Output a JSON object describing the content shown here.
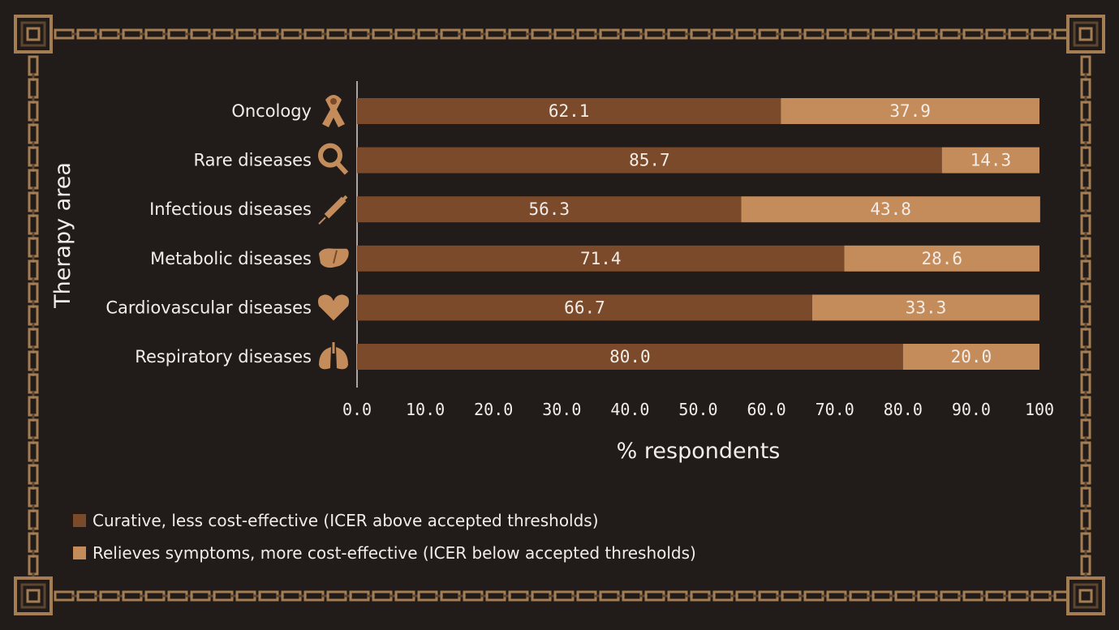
{
  "chart_data": {
    "type": "bar",
    "orientation": "horizontal",
    "stacked": true,
    "categories": [
      "Oncology",
      "Rare diseases",
      "Infectious diseases",
      "Metabolic diseases",
      "Cardiovascular diseases",
      "Respiratory diseases"
    ],
    "category_icons": [
      "ribbon-icon",
      "magnifier-icon",
      "syringe-icon",
      "liver-icon",
      "heart-icon",
      "lungs-icon"
    ],
    "series": [
      {
        "name": "Curative, less cost-effective (ICER above accepted thresholds)",
        "color": "#7a4a2a",
        "values": [
          62.1,
          85.7,
          56.3,
          71.4,
          66.7,
          80.0
        ],
        "labels": [
          "62.1",
          "85.7",
          "56.3",
          "71.4",
          "66.7",
          "80.0"
        ]
      },
      {
        "name": "Relieves symptoms, more cost-effective (ICER below accepted thresholds)",
        "color": "#c48c5a",
        "values": [
          37.9,
          14.3,
          43.8,
          28.6,
          33.3,
          20.0
        ],
        "labels": [
          "37.9",
          "14.3",
          "43.8",
          "28.6",
          "33.3",
          "20.0"
        ]
      }
    ],
    "xlim": [
      0,
      100
    ],
    "xticks": [
      "0.0",
      "10.0",
      "20.0",
      "30.0",
      "40.0",
      "50.0",
      "60.0",
      "70.0",
      "80.0",
      "90.0",
      "100"
    ],
    "xlabel": "% respondents",
    "ylabel": "Therapy area",
    "legend_position": "bottom-left",
    "grid": false
  },
  "colors": {
    "background": "#211b1a",
    "frame": "#a47e52",
    "frame_dark": "#5d4630",
    "text": "#f2ede8",
    "icon": "#c48c5a"
  }
}
